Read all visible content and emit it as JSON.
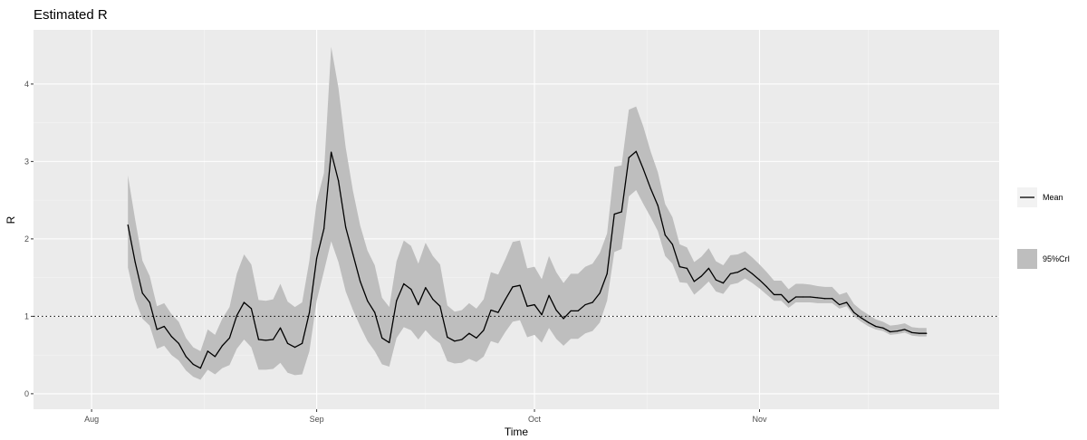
{
  "chart_data": {
    "type": "line",
    "title": "Estimated R",
    "xlabel": "Time",
    "ylabel": "R",
    "x_ticks": [
      "Aug",
      "Sep",
      "Oct",
      "Nov"
    ],
    "x_tick_dates": [
      "2020-08-01",
      "2020-09-01",
      "2020-10-01",
      "2020-11-01"
    ],
    "y_ticks": [
      "0",
      "1",
      "2",
      "3",
      "4"
    ],
    "xlim": [
      "2020-07-24",
      "2020-12-04"
    ],
    "ylim": [
      -0.2,
      4.7
    ],
    "grid": true,
    "legend_position": "right",
    "reference_line": {
      "y": 1,
      "style": "dotted"
    },
    "legend": {
      "mean_label": "Mean",
      "band_label": "95%CrI"
    },
    "colors": {
      "panel": "#ebebeb",
      "grid": "#ffffff",
      "line": "#000000",
      "band": "#bebebe"
    },
    "start_date": "2020-08-06",
    "series": [
      {
        "name": "Mean",
        "values": [
          2.18,
          1.7,
          1.3,
          1.18,
          0.83,
          0.87,
          0.74,
          0.65,
          0.48,
          0.38,
          0.33,
          0.55,
          0.48,
          0.62,
          0.72,
          1.01,
          1.18,
          1.1,
          0.7,
          0.69,
          0.7,
          0.85,
          0.65,
          0.6,
          0.65,
          1.05,
          1.75,
          2.13,
          3.12,
          2.75,
          2.15,
          1.8,
          1.45,
          1.2,
          1.05,
          0.72,
          0.66,
          1.2,
          1.42,
          1.35,
          1.15,
          1.37,
          1.22,
          1.13,
          0.73,
          0.68,
          0.7,
          0.78,
          0.72,
          0.82,
          1.08,
          1.05,
          1.22,
          1.38,
          1.4,
          1.13,
          1.15,
          1.02,
          1.27,
          1.08,
          0.97,
          1.07,
          1.07,
          1.15,
          1.18,
          1.3,
          1.55,
          2.32,
          2.35,
          3.05,
          3.13,
          2.9,
          2.65,
          2.43,
          2.05,
          1.93,
          1.64,
          1.62,
          1.45,
          1.52,
          1.62,
          1.47,
          1.43,
          1.55,
          1.57,
          1.62,
          1.55,
          1.47,
          1.38,
          1.28,
          1.28,
          1.18,
          1.25,
          1.25,
          1.25,
          1.24,
          1.23,
          1.23,
          1.15,
          1.18,
          1.05,
          0.98,
          0.92,
          0.87,
          0.85,
          0.8,
          0.81,
          0.83,
          0.79,
          0.78,
          0.78
        ]
      },
      {
        "name": "95%CrI",
        "lower": [
          1.63,
          1.22,
          0.97,
          0.88,
          0.58,
          0.62,
          0.5,
          0.43,
          0.3,
          0.22,
          0.18,
          0.31,
          0.25,
          0.33,
          0.37,
          0.58,
          0.7,
          0.6,
          0.31,
          0.31,
          0.32,
          0.4,
          0.27,
          0.24,
          0.25,
          0.55,
          1.2,
          1.58,
          1.97,
          1.7,
          1.32,
          1.08,
          0.87,
          0.68,
          0.55,
          0.38,
          0.35,
          0.72,
          0.86,
          0.82,
          0.7,
          0.82,
          0.72,
          0.65,
          0.42,
          0.39,
          0.4,
          0.45,
          0.41,
          0.48,
          0.68,
          0.65,
          0.8,
          0.93,
          0.95,
          0.73,
          0.76,
          0.66,
          0.85,
          0.71,
          0.62,
          0.71,
          0.71,
          0.78,
          0.81,
          0.92,
          1.2,
          1.83,
          1.87,
          2.55,
          2.63,
          2.45,
          2.28,
          2.1,
          1.78,
          1.68,
          1.44,
          1.43,
          1.28,
          1.36,
          1.45,
          1.32,
          1.29,
          1.41,
          1.43,
          1.49,
          1.43,
          1.36,
          1.28,
          1.2,
          1.2,
          1.11,
          1.18,
          1.18,
          1.18,
          1.17,
          1.17,
          1.17,
          1.1,
          1.13,
          1.0,
          0.93,
          0.87,
          0.83,
          0.81,
          0.76,
          0.77,
          0.79,
          0.75,
          0.74,
          0.74
        ],
        "upper": [
          2.82,
          2.25,
          1.72,
          1.52,
          1.13,
          1.17,
          1.03,
          0.93,
          0.72,
          0.6,
          0.55,
          0.83,
          0.76,
          0.97,
          1.12,
          1.55,
          1.8,
          1.67,
          1.21,
          1.2,
          1.22,
          1.42,
          1.19,
          1.12,
          1.18,
          1.72,
          2.48,
          2.85,
          4.48,
          3.95,
          3.18,
          2.62,
          2.17,
          1.85,
          1.66,
          1.24,
          1.12,
          1.71,
          1.98,
          1.91,
          1.68,
          1.95,
          1.78,
          1.67,
          1.14,
          1.06,
          1.08,
          1.17,
          1.1,
          1.22,
          1.57,
          1.54,
          1.74,
          1.96,
          1.98,
          1.62,
          1.64,
          1.48,
          1.78,
          1.57,
          1.43,
          1.55,
          1.55,
          1.64,
          1.68,
          1.82,
          2.07,
          2.93,
          2.95,
          3.67,
          3.71,
          3.45,
          3.13,
          2.86,
          2.45,
          2.28,
          1.93,
          1.89,
          1.7,
          1.77,
          1.88,
          1.71,
          1.66,
          1.79,
          1.8,
          1.84,
          1.76,
          1.67,
          1.57,
          1.46,
          1.46,
          1.35,
          1.42,
          1.42,
          1.41,
          1.39,
          1.38,
          1.38,
          1.28,
          1.31,
          1.16,
          1.08,
          1.02,
          0.96,
          0.93,
          0.88,
          0.89,
          0.91,
          0.86,
          0.85,
          0.85
        ]
      }
    ]
  }
}
